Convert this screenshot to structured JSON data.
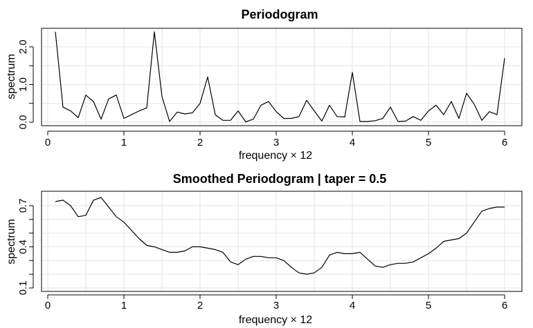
{
  "chart_data": [
    {
      "type": "line",
      "title": "Periodogram",
      "xlabel": "frequency × 12",
      "ylabel": "spectrum",
      "xlim": [
        0,
        6
      ],
      "ylim": [
        0,
        2.4
      ],
      "x_ticks": [
        0,
        1,
        2,
        3,
        4,
        5,
        6
      ],
      "x_tick_labels": [
        "0",
        "1",
        "2",
        "3",
        "4",
        "5",
        "6"
      ],
      "y_ticks": [
        0,
        0.5,
        1,
        1.5,
        2
      ],
      "y_tick_labels": [
        "0.0",
        "",
        "1.0",
        "",
        "2.0"
      ],
      "grid": true,
      "series": [
        {
          "x": [
            0.1,
            0.2,
            0.3,
            0.4,
            0.5,
            0.6,
            0.7,
            0.8,
            0.9,
            1.0,
            1.1,
            1.2,
            1.3,
            1.4,
            1.5,
            1.6,
            1.7,
            1.8,
            1.9,
            2.0,
            2.1,
            2.2,
            2.3,
            2.4,
            2.5,
            2.6,
            2.7,
            2.8,
            2.9,
            3.0,
            3.1,
            3.2,
            3.3,
            3.4,
            3.5,
            3.6,
            3.7,
            3.8,
            3.9,
            4.0,
            4.1,
            4.2,
            4.3,
            4.4,
            4.5,
            4.6,
            4.7,
            4.8,
            4.9,
            5.0,
            5.1,
            5.2,
            5.3,
            5.4,
            5.5,
            5.6,
            5.7,
            5.8,
            5.9,
            6.0
          ],
          "values": [
            2.4,
            0.4,
            0.3,
            0.12,
            0.72,
            0.55,
            0.08,
            0.62,
            0.72,
            0.1,
            0.2,
            0.3,
            0.38,
            2.4,
            0.68,
            0.02,
            0.27,
            0.22,
            0.25,
            0.5,
            1.2,
            0.2,
            0.05,
            0.05,
            0.3,
            0.01,
            0.08,
            0.45,
            0.55,
            0.28,
            0.1,
            0.1,
            0.15,
            0.58,
            0.3,
            0.03,
            0.45,
            0.15,
            0.14,
            1.32,
            0.02,
            0.02,
            0.04,
            0.1,
            0.4,
            0.02,
            0.03,
            0.15,
            0.05,
            0.3,
            0.45,
            0.2,
            0.55,
            0.1,
            0.77,
            0.48,
            0.05,
            0.28,
            0.2,
            1.7
          ]
        }
      ]
    },
    {
      "type": "line",
      "title": "Smoothed Periodogram | taper = 0.5",
      "xlabel": "frequency × 12",
      "ylabel": "spectrum",
      "xlim": [
        0,
        6
      ],
      "ylim": [
        0.1,
        0.78
      ],
      "x_ticks": [
        0,
        1,
        2,
        3,
        4,
        5,
        6
      ],
      "x_tick_labels": [
        "0",
        "1",
        "2",
        "3",
        "4",
        "5",
        "6"
      ],
      "y_ticks": [
        0.1,
        0.2,
        0.3,
        0.4,
        0.5,
        0.6,
        0.7
      ],
      "y_tick_labels": [
        "0.1",
        "",
        "",
        "0.4",
        "",
        "",
        "0.7"
      ],
      "grid": true,
      "series": [
        {
          "x": [
            0.1,
            0.2,
            0.3,
            0.4,
            0.5,
            0.6,
            0.7,
            0.8,
            0.9,
            1.0,
            1.1,
            1.2,
            1.3,
            1.4,
            1.5,
            1.6,
            1.7,
            1.8,
            1.9,
            2.0,
            2.1,
            2.2,
            2.3,
            2.4,
            2.5,
            2.6,
            2.7,
            2.8,
            2.9,
            3.0,
            3.1,
            3.2,
            3.3,
            3.4,
            3.5,
            3.6,
            3.7,
            3.8,
            3.9,
            4.0,
            4.1,
            4.2,
            4.3,
            4.4,
            4.5,
            4.6,
            4.7,
            4.8,
            4.9,
            5.0,
            5.1,
            5.2,
            5.3,
            5.4,
            5.5,
            5.6,
            5.7,
            5.8,
            5.9,
            6.0
          ],
          "values": [
            0.73,
            0.74,
            0.7,
            0.62,
            0.63,
            0.74,
            0.76,
            0.69,
            0.62,
            0.58,
            0.52,
            0.46,
            0.41,
            0.4,
            0.38,
            0.36,
            0.36,
            0.37,
            0.4,
            0.4,
            0.39,
            0.38,
            0.36,
            0.29,
            0.27,
            0.31,
            0.33,
            0.33,
            0.32,
            0.32,
            0.3,
            0.25,
            0.21,
            0.2,
            0.21,
            0.25,
            0.34,
            0.36,
            0.35,
            0.35,
            0.36,
            0.31,
            0.26,
            0.25,
            0.27,
            0.28,
            0.28,
            0.29,
            0.32,
            0.35,
            0.39,
            0.44,
            0.45,
            0.46,
            0.5,
            0.58,
            0.66,
            0.68,
            0.69,
            0.69
          ]
        }
      ]
    }
  ]
}
